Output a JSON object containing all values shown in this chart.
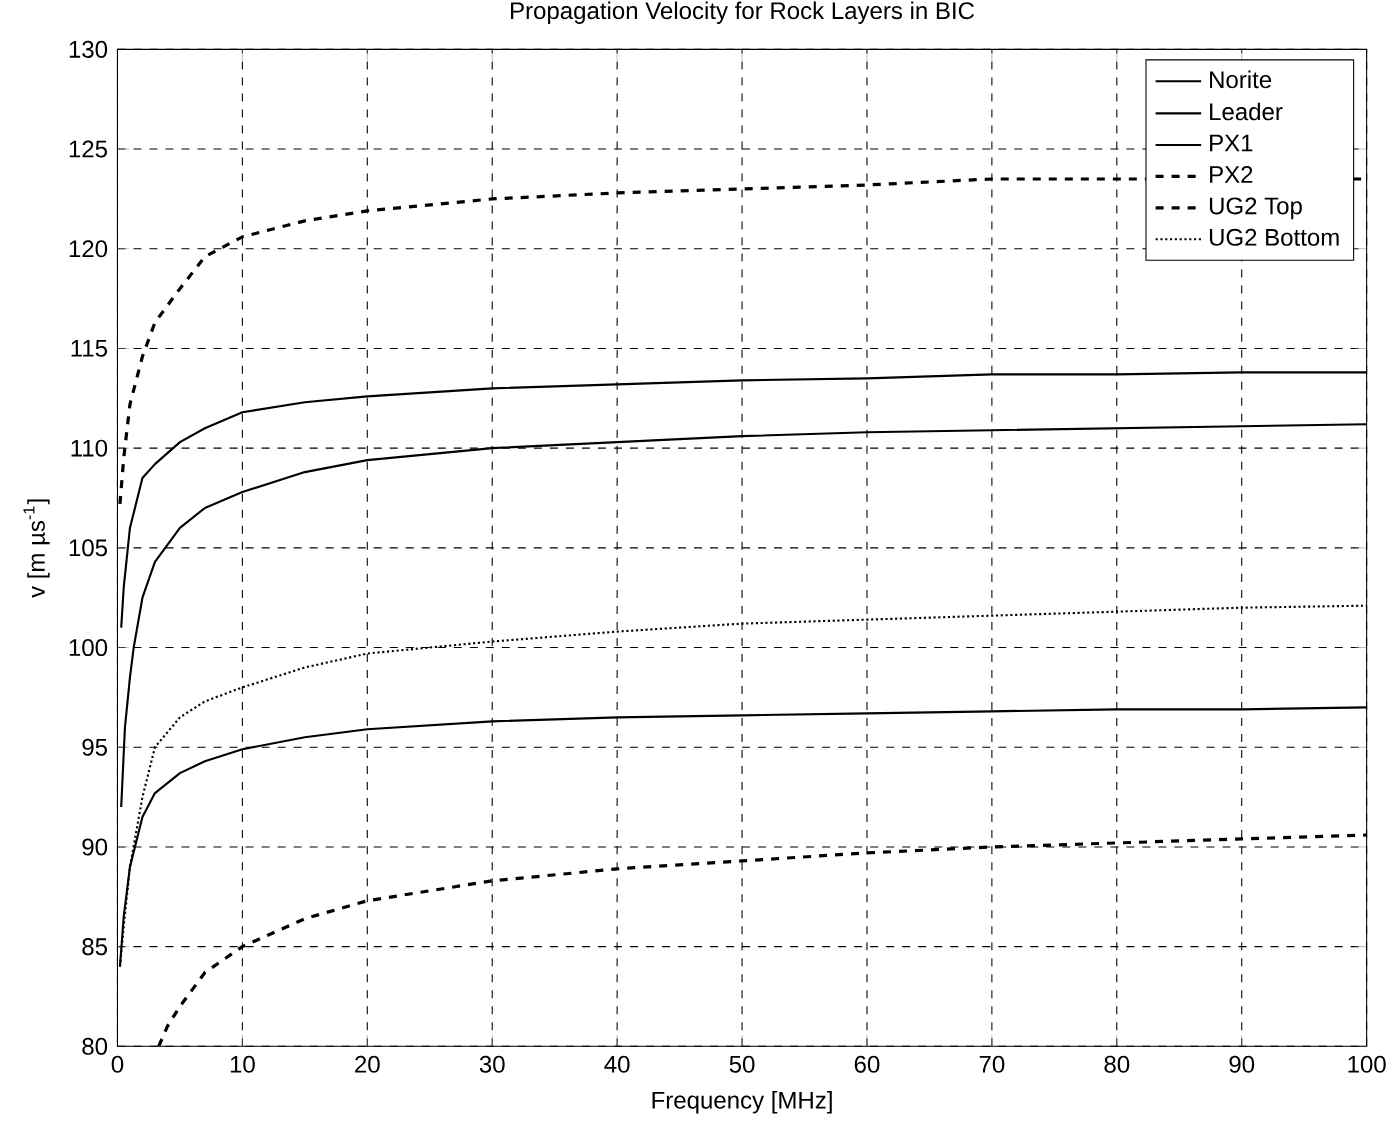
{
  "chart_data": {
    "type": "line",
    "title": "Propagation Velocity for Rock Layers in BIC",
    "xlabel": "Frequency [MHz]",
    "ylabel": "v [m µs$^{-1}$]",
    "xlim": [
      0,
      100
    ],
    "ylim": [
      80,
      130
    ],
    "xticks": [
      0,
      10,
      20,
      30,
      40,
      50,
      60,
      70,
      80,
      90,
      100
    ],
    "yticks": [
      80,
      85,
      90,
      95,
      100,
      105,
      110,
      115,
      120,
      125,
      130
    ],
    "grid": true,
    "legend": "top right",
    "marker": "none",
    "series": [
      {
        "name": "Norite",
        "color": "#000000",
        "line_style": "solid",
        "x": [
          0.2,
          0.5,
          1,
          2,
          3,
          5,
          7,
          10,
          15,
          20,
          30,
          40,
          50,
          60,
          70,
          80,
          90,
          100
        ],
        "values": [
          84,
          86.5,
          89,
          91.5,
          92.7,
          93.7,
          94.3,
          94.9,
          95.5,
          95.9,
          96.3,
          96.5,
          96.6,
          96.7,
          96.8,
          96.9,
          96.9,
          97
        ]
      },
      {
        "name": "Leader",
        "color": "#000000",
        "line_style": "solid",
        "x": [
          0.3,
          0.5,
          1,
          2,
          3,
          5,
          7,
          10,
          15,
          20,
          30,
          40,
          50,
          60,
          70,
          80,
          90,
          100
        ],
        "values": [
          101,
          103,
          106,
          108.5,
          109.2,
          110.3,
          111,
          111.8,
          112.3,
          112.6,
          113,
          113.2,
          113.4,
          113.5,
          113.7,
          113.7,
          113.8,
          113.8
        ]
      },
      {
        "name": "PX1",
        "color": "#000000",
        "line_style": "solid",
        "x": [
          0.3,
          0.6,
          1,
          1.3,
          2,
          3,
          5,
          7,
          10,
          15,
          20,
          30,
          40,
          50,
          60,
          70,
          80,
          90,
          100
        ],
        "values": [
          92,
          96,
          98.5,
          100,
          102.5,
          104.3,
          106,
          107,
          107.8,
          108.8,
          109.4,
          110,
          110.3,
          110.6,
          110.8,
          110.9,
          111,
          111.1,
          111.2
        ]
      },
      {
        "name": "PX2",
        "color": "#000000",
        "line_style": "dashed",
        "x": [
          0.2,
          0.5,
          1,
          2,
          3,
          5,
          7,
          10,
          15,
          20,
          30,
          40,
          50,
          60,
          70,
          80,
          90,
          100
        ],
        "values": [
          107.2,
          109.5,
          112.2,
          114.6,
          116.3,
          118,
          119.6,
          120.6,
          121.4,
          121.9,
          122.5,
          122.8,
          123,
          123.2,
          123.5,
          123.5,
          123.5,
          123.5
        ]
      },
      {
        "name": "UG2 Top",
        "color": "#000000",
        "line_style": "dashed",
        "x": [
          3.3,
          4,
          5,
          7,
          10,
          15,
          20,
          30,
          40,
          50,
          60,
          70,
          80,
          90,
          100
        ],
        "values": [
          80,
          81,
          82,
          83.7,
          85,
          86.4,
          87.3,
          88.3,
          88.9,
          89.3,
          89.7,
          90,
          90.2,
          90.4,
          90.6
        ]
      },
      {
        "name": "UG2 Bottom",
        "color": "#000000",
        "line_style": "dotted",
        "x": [
          0.2,
          0.5,
          1,
          2,
          3,
          5,
          7,
          10,
          15,
          20,
          30,
          40,
          50,
          60,
          70,
          80,
          90,
          100
        ],
        "values": [
          84,
          86,
          89,
          92.5,
          95,
          96.5,
          97.3,
          98,
          99,
          99.7,
          100.3,
          100.8,
          101.2,
          101.4,
          101.6,
          101.8,
          102,
          102.1
        ]
      }
    ]
  }
}
